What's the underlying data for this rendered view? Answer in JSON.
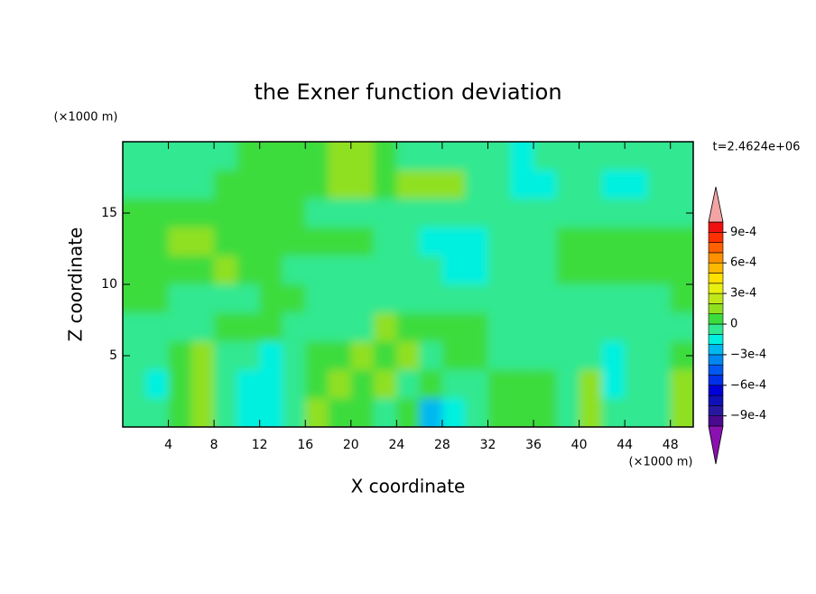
{
  "chart_data": {
    "type": "contour",
    "title": "the Exner function deviation",
    "y_unit": "(×1000 m)",
    "x_unit": "(×1000 m)",
    "time_label": "t=2.4624e+06",
    "xlabel": "X coordinate",
    "ylabel": "Z coordinate",
    "xlim": [
      0,
      50
    ],
    "ylim": [
      0,
      20
    ],
    "xticks": [
      4,
      8,
      12,
      16,
      20,
      24,
      28,
      32,
      36,
      40,
      44,
      48
    ],
    "yticks": [
      5,
      10,
      15
    ],
    "x": [
      1,
      3,
      5,
      7,
      9,
      11,
      13,
      15,
      17,
      19,
      21,
      23,
      25,
      27,
      29,
      31,
      33,
      35,
      37,
      39,
      41,
      43,
      45,
      47,
      49
    ],
    "y": [
      19,
      17,
      15,
      13,
      11,
      9,
      7,
      5,
      3,
      1
    ],
    "z": [
      [
        -5e-05,
        -5e-05,
        -5e-05,
        -5e-05,
        -5e-05,
        5e-05,
        5e-05,
        5e-05,
        5e-05,
        0.00015,
        0.00015,
        5e-05,
        -5e-05,
        -5e-05,
        -5e-05,
        -5e-05,
        -5e-05,
        -0.00015,
        -5e-05,
        -5e-05,
        -5e-05,
        -5e-05,
        -5e-05,
        -5e-05,
        -5e-05
      ],
      [
        -5e-05,
        -5e-05,
        -5e-05,
        -5e-05,
        5e-05,
        5e-05,
        5e-05,
        5e-05,
        5e-05,
        0.00015,
        0.00015,
        5e-05,
        0.00015,
        0.00015,
        0.00015,
        -5e-05,
        -5e-05,
        -0.00015,
        -0.00015,
        -5e-05,
        -5e-05,
        -0.00015,
        -0.00015,
        -5e-05,
        -5e-05
      ],
      [
        5e-05,
        5e-05,
        5e-05,
        5e-05,
        5e-05,
        5e-05,
        5e-05,
        5e-05,
        -5e-05,
        -5e-05,
        -5e-05,
        -5e-05,
        -5e-05,
        -5e-05,
        -5e-05,
        -5e-05,
        -5e-05,
        -5e-05,
        -5e-05,
        -5e-05,
        -5e-05,
        -5e-05,
        -5e-05,
        -5e-05,
        -5e-05
      ],
      [
        5e-05,
        5e-05,
        0.00015,
        0.00015,
        5e-05,
        5e-05,
        5e-05,
        5e-05,
        5e-05,
        5e-05,
        5e-05,
        -5e-05,
        -5e-05,
        -0.00015,
        -0.00015,
        -0.00015,
        -5e-05,
        -5e-05,
        -5e-05,
        5e-05,
        5e-05,
        5e-05,
        5e-05,
        5e-05,
        5e-05
      ],
      [
        5e-05,
        5e-05,
        5e-05,
        5e-05,
        0.00015,
        5e-05,
        5e-05,
        -5e-05,
        -5e-05,
        -5e-05,
        -5e-05,
        -5e-05,
        -5e-05,
        -5e-05,
        -0.00015,
        -0.00015,
        -5e-05,
        -5e-05,
        -5e-05,
        5e-05,
        5e-05,
        5e-05,
        5e-05,
        5e-05,
        5e-05
      ],
      [
        5e-05,
        5e-05,
        -5e-05,
        -5e-05,
        -5e-05,
        -5e-05,
        5e-05,
        5e-05,
        -5e-05,
        -5e-05,
        -5e-05,
        -5e-05,
        -5e-05,
        -5e-05,
        -5e-05,
        -5e-05,
        -5e-05,
        -5e-05,
        -5e-05,
        -5e-05,
        -5e-05,
        -5e-05,
        -5e-05,
        -5e-05,
        5e-05
      ],
      [
        -5e-05,
        -5e-05,
        -5e-05,
        -5e-05,
        5e-05,
        5e-05,
        5e-05,
        -5e-05,
        -5e-05,
        -5e-05,
        -5e-05,
        0.00015,
        5e-05,
        5e-05,
        5e-05,
        5e-05,
        -5e-05,
        -5e-05,
        -5e-05,
        -5e-05,
        -5e-05,
        -5e-05,
        -5e-05,
        -5e-05,
        -5e-05
      ],
      [
        -5e-05,
        -5e-05,
        5e-05,
        0.00015,
        -5e-05,
        -5e-05,
        -0.00015,
        -5e-05,
        5e-05,
        5e-05,
        0.00015,
        5e-05,
        0.00015,
        -5e-05,
        5e-05,
        5e-05,
        -5e-05,
        -5e-05,
        -5e-05,
        -5e-05,
        -5e-05,
        -0.00015,
        -5e-05,
        -5e-05,
        5e-05
      ],
      [
        -5e-05,
        -0.00015,
        5e-05,
        0.00015,
        -5e-05,
        -0.00015,
        -0.00015,
        -5e-05,
        5e-05,
        0.00015,
        5e-05,
        0.00015,
        -5e-05,
        5e-05,
        -5e-05,
        -5e-05,
        5e-05,
        5e-05,
        5e-05,
        -5e-05,
        0.00015,
        -0.00015,
        -5e-05,
        -5e-05,
        0.00015
      ],
      [
        -5e-05,
        -5e-05,
        5e-05,
        0.00015,
        -5e-05,
        -0.00015,
        -0.00015,
        -5e-05,
        0.00015,
        5e-05,
        5e-05,
        -5e-05,
        5e-05,
        -0.00025,
        -0.00015,
        -5e-05,
        5e-05,
        5e-05,
        5e-05,
        -5e-05,
        0.00015,
        -5e-05,
        -5e-05,
        -5e-05,
        0.00015
      ]
    ],
    "levels": [
      -0.001,
      -0.0009,
      -0.0008,
      -0.0007,
      -0.0006,
      -0.0005,
      -0.0004,
      -0.0003,
      -0.0002,
      -0.0001,
      0,
      0.0001,
      0.0002,
      0.0003,
      0.0004,
      0.0005,
      0.0006,
      0.0007,
      0.0008,
      0.0009,
      0.001
    ],
    "colors": [
      "#8a10b0",
      "#4a0a90",
      "#2818a0",
      "#1010b8",
      "#0000d8",
      "#0030e8",
      "#0058f0",
      "#0088f0",
      "#00b8f0",
      "#00f0e0",
      "#30e890",
      "#3cdc3c",
      "#90e020",
      "#c0e818",
      "#e8f010",
      "#ffe000",
      "#ffb800",
      "#ff9000",
      "#ff6000",
      "#ff3000",
      "#f01010",
      "#f4a4a4"
    ],
    "cticks": [
      {
        "value": 0.0009,
        "label": "9e-4"
      },
      {
        "value": 0.0006,
        "label": "6e-4"
      },
      {
        "value": 0.0003,
        "label": "3e-4"
      },
      0,
      {
        "value": -0.0003,
        "label": "−3e-4"
      },
      {
        "value": -0.0006,
        "label": "−6e-4"
      },
      {
        "value": -0.0009,
        "label": "−9e-4"
      }
    ]
  }
}
